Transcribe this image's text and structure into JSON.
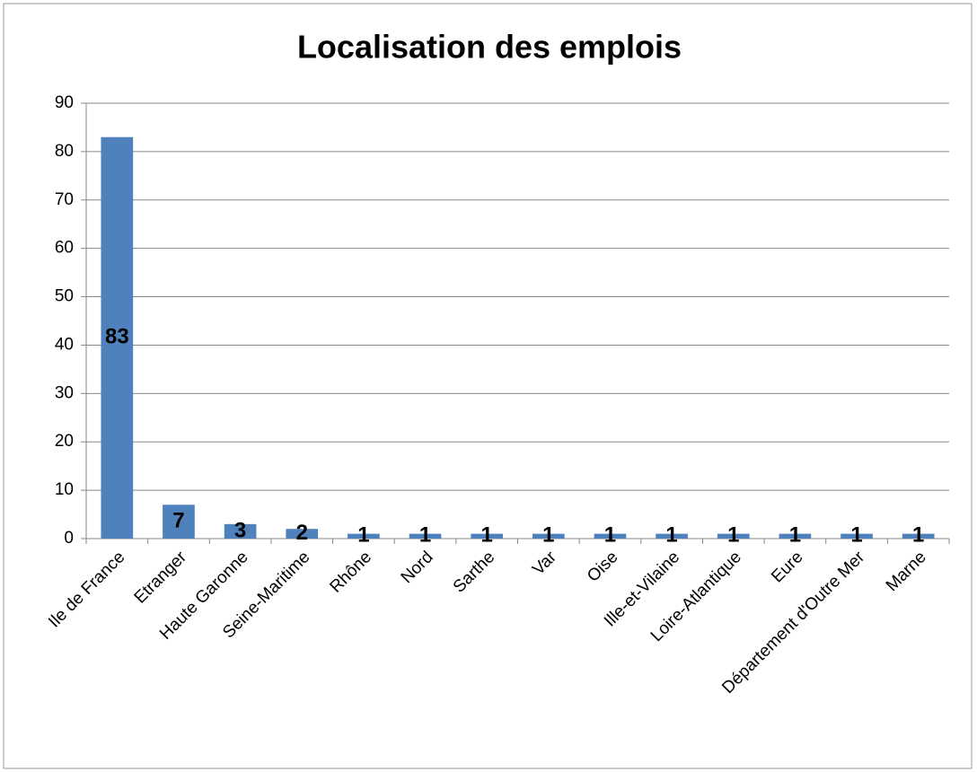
{
  "chart_data": {
    "type": "bar",
    "title": "Localisation des emplois",
    "categories": [
      "Ile de France",
      "Etranger",
      "Haute Garonne",
      "Seine-Maritime",
      "Rhône",
      "Nord",
      "Sarthe",
      "Var",
      "Oise",
      "Ille-et-Vilaine",
      "Loire-Atlantique",
      "Eure",
      "Département d'Outre Mer",
      "Marne"
    ],
    "values": [
      83,
      7,
      3,
      2,
      1,
      1,
      1,
      1,
      1,
      1,
      1,
      1,
      1,
      1
    ],
    "color": "#4f81bd",
    "ylim": [
      0,
      90
    ],
    "yticks": [
      0,
      10,
      20,
      30,
      40,
      50,
      60,
      70,
      80,
      90
    ],
    "grid": true
  }
}
